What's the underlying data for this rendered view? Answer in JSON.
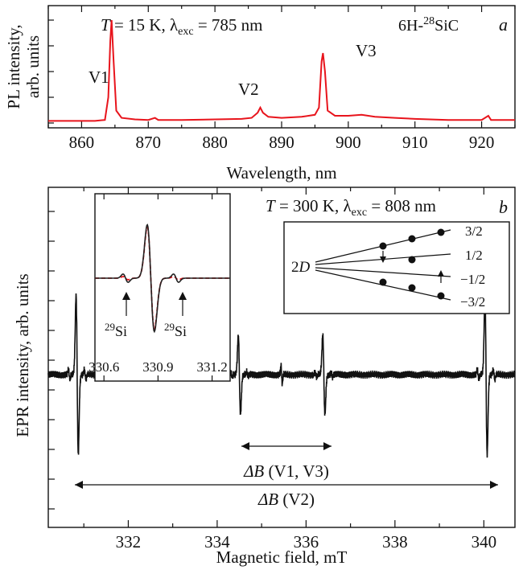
{
  "chart_data": [
    {
      "panel": "a",
      "type": "line",
      "color": "#e8141c",
      "xlabel": "Wavelength, nm",
      "ylabel_line1": "PL intensity,",
      "ylabel_line2": "arb. units",
      "xlim": [
        855,
        925
      ],
      "ylim": [
        0,
        1
      ],
      "xticks": [
        860,
        870,
        880,
        890,
        900,
        910,
        920
      ],
      "xtick_labels": [
        "860",
        "870",
        "880",
        "890",
        "900",
        "910",
        "920"
      ],
      "ann_temp": "T = 15 K, λexc = 785 nm",
      "ann_sample": "6H-28SiC",
      "panel_letter": "a",
      "peaks": [
        {
          "name": "V1",
          "label": "V1",
          "x": 864.5,
          "y": 1.0
        },
        {
          "name": "V2",
          "label": "V2",
          "x": 886.8,
          "y": 0.15
        },
        {
          "name": "V3",
          "label": "V3",
          "x": 896.2,
          "y": 0.68
        }
      ],
      "spectrum": [
        [
          855,
          0.02
        ],
        [
          858,
          0.02
        ],
        [
          862,
          0.02
        ],
        [
          863.5,
          0.03
        ],
        [
          864.0,
          0.25
        ],
        [
          864.3,
          0.8
        ],
        [
          864.5,
          1.0
        ],
        [
          864.8,
          0.6
        ],
        [
          865.2,
          0.12
        ],
        [
          866,
          0.05
        ],
        [
          868,
          0.035
        ],
        [
          870,
          0.03
        ],
        [
          871,
          0.05
        ],
        [
          871.5,
          0.03
        ],
        [
          875,
          0.03
        ],
        [
          880,
          0.035
        ],
        [
          884,
          0.04
        ],
        [
          885.5,
          0.05
        ],
        [
          886.4,
          0.1
        ],
        [
          886.8,
          0.15
        ],
        [
          887.2,
          0.1
        ],
        [
          888,
          0.06
        ],
        [
          890,
          0.05
        ],
        [
          893,
          0.06
        ],
        [
          895,
          0.08
        ],
        [
          895.6,
          0.15
        ],
        [
          896.0,
          0.6
        ],
        [
          896.2,
          0.68
        ],
        [
          896.5,
          0.5
        ],
        [
          896.9,
          0.12
        ],
        [
          898,
          0.07
        ],
        [
          900,
          0.07
        ],
        [
          902,
          0.08
        ],
        [
          904,
          0.06
        ],
        [
          907,
          0.05
        ],
        [
          910,
          0.04
        ],
        [
          915,
          0.03
        ],
        [
          920,
          0.03
        ],
        [
          921,
          0.07
        ],
        [
          921.4,
          0.03
        ],
        [
          925,
          0.03
        ]
      ]
    },
    {
      "panel": "b",
      "type": "line",
      "color": "#111111",
      "xlabel": "Magnetic field, mT",
      "ylabel": "EPR intensity, arb. units",
      "xlim": [
        330.2,
        340.7
      ],
      "ylim": [
        -1,
        1
      ],
      "xticks": [
        332,
        334,
        336,
        338,
        340
      ],
      "xtick_labels": [
        "332",
        "334",
        "336",
        "338",
        "340"
      ],
      "ann_temp": "T = 300 K, λexc = 808 nm",
      "panel_letter": "b",
      "lines": [
        {
          "center": 330.85,
          "amp": 1.0
        },
        {
          "center": 334.5,
          "amp": 0.5
        },
        {
          "center": 336.4,
          "amp": 0.5
        },
        {
          "center": 340.05,
          "amp": 1.0
        }
      ],
      "delta_v13": "ΔB (V1, V3)",
      "delta_v2": "ΔB (V2)",
      "inset": {
        "xlim": [
          330.55,
          331.3
        ],
        "xticks": [
          330.6,
          330.9,
          331.2
        ],
        "xtick_labels": [
          "330.6",
          "330.9",
          "331.2"
        ],
        "si_label_left": "29Si",
        "si_label_right": "29Si",
        "solid_color": "#222222",
        "dashed_color": "#e8141c"
      },
      "level_diagram": {
        "zero_field": "2D",
        "levels": [
          "3/2",
          "1/2",
          "−1/2",
          "−3/2"
        ]
      }
    }
  ]
}
